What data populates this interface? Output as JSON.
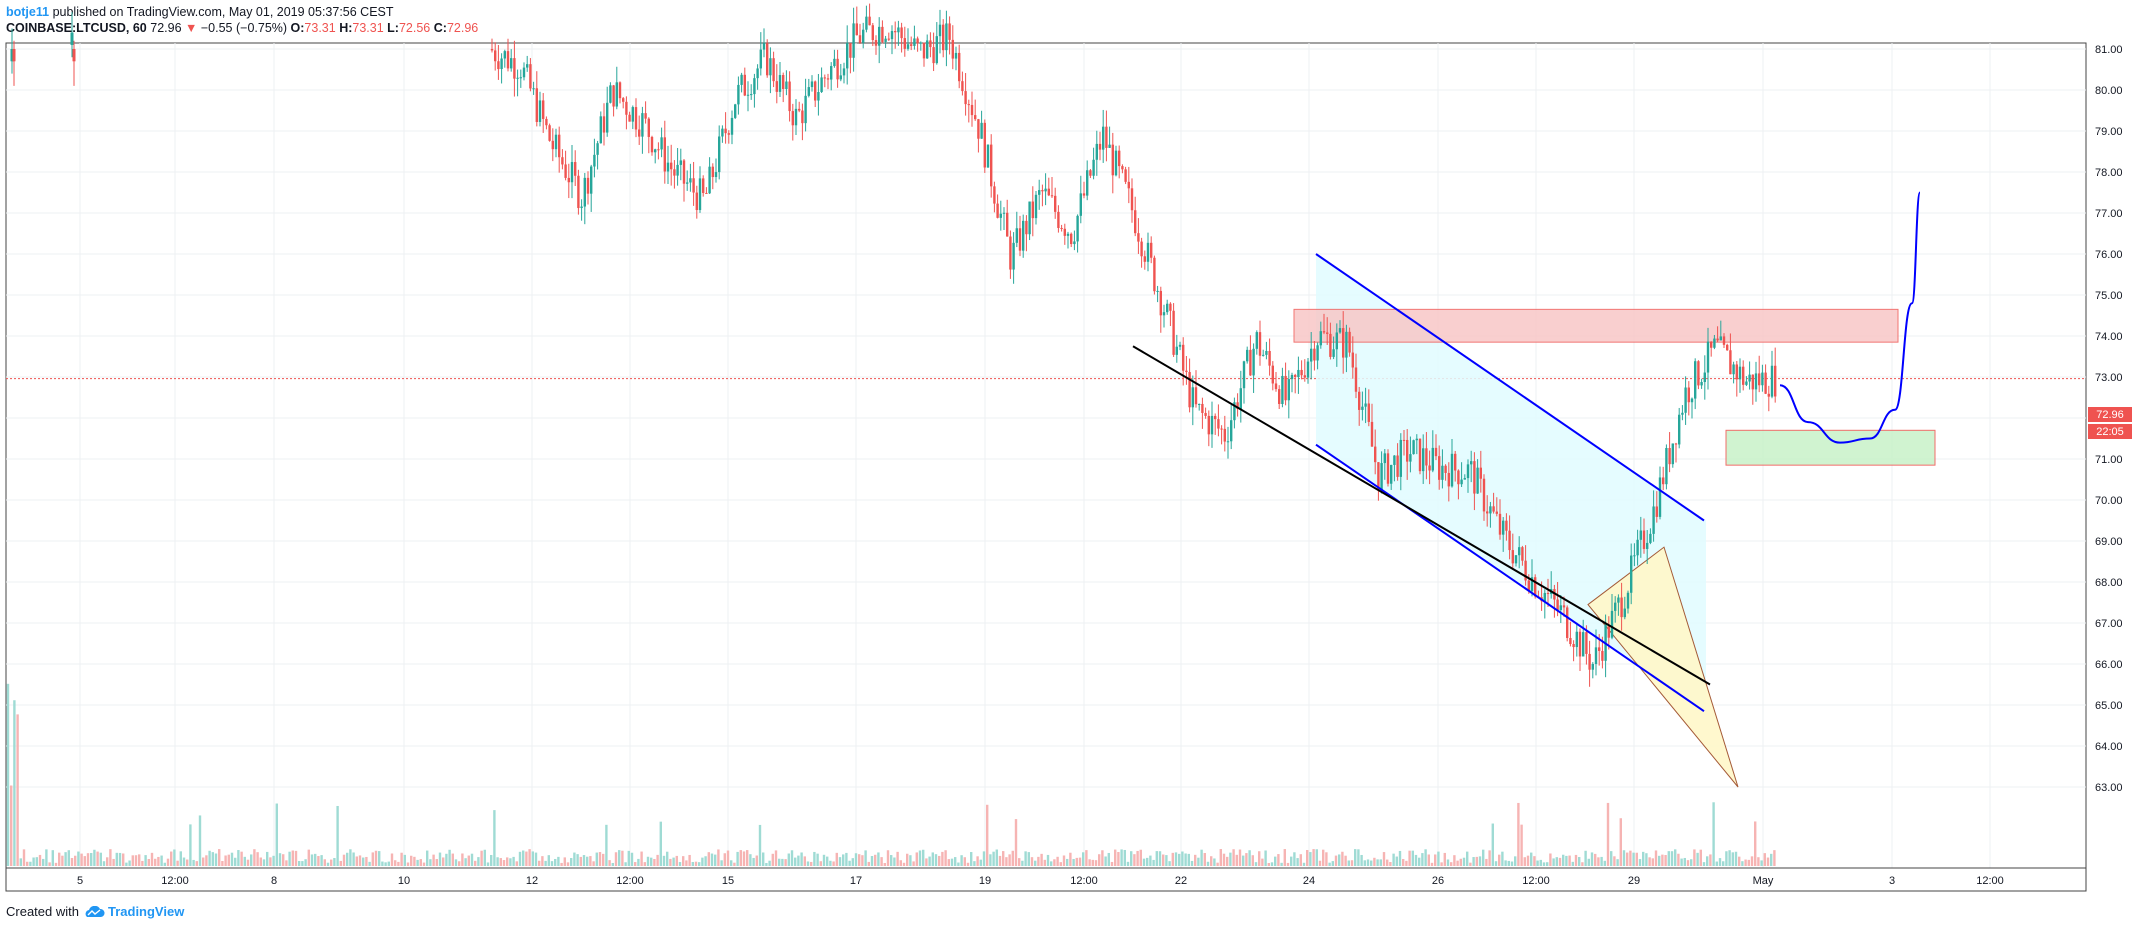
{
  "header": {
    "user": "botje11",
    "published_text": "published on TradingView.com, May 01, 2019 05:37:56 CEST",
    "symbol": "COINBASE:LTCUSD, 60",
    "last": "72.96",
    "arrow": "▼",
    "change": "−0.55 (−0.75%)",
    "o_label": "O:",
    "o_value": "73.31",
    "h_label": "H:",
    "h_value": "73.31",
    "l_label": "L:",
    "l_value": "72.56",
    "c_label": "C:",
    "c_value": "72.96"
  },
  "footer": {
    "created": "Created with",
    "brand": "TradingView"
  },
  "price_badge": "72.96",
  "countdown_badge": "22:05",
  "colors": {
    "up": "#26a69a",
    "down": "#ef5350",
    "channel": "#0000ff",
    "support": "#000000",
    "resistance_fill": "#f8c4c4",
    "demand_fill": "#c8f2c8",
    "wedge_fill": "#fff8cc",
    "channel_fill": "#e0fbff"
  },
  "chart_data": {
    "type": "candlestick",
    "symbol": "COINBASE:LTCUSD",
    "interval": "60",
    "y_ticks": [
      63.0,
      64.0,
      65.0,
      66.0,
      67.0,
      68.0,
      69.0,
      70.0,
      71.0,
      72.0,
      73.0,
      74.0,
      75.0,
      76.0,
      77.0,
      78.0,
      79.0,
      80.0,
      81.0
    ],
    "ylim": [
      62.0,
      82.0
    ],
    "x_ticks": [
      "5",
      "12:00",
      "8",
      "10",
      "12",
      "12:00",
      "15",
      "17",
      "19",
      "12:00",
      "22",
      "24",
      "26",
      "12:00",
      "29",
      "May",
      "3",
      "12:00"
    ],
    "last_price": 72.96,
    "series_path": [
      [
        0,
        81.0
      ],
      [
        1,
        80.6
      ],
      [
        2,
        78.7
      ],
      [
        3,
        77.4
      ],
      [
        4,
        80.0
      ],
      [
        5,
        79.2
      ],
      [
        6,
        78.0
      ],
      [
        7,
        77.3
      ],
      [
        8,
        79.8
      ],
      [
        9,
        80.8
      ],
      [
        10,
        79.3
      ],
      [
        11,
        80.4
      ],
      [
        12,
        81.3
      ],
      [
        13,
        81.6
      ],
      [
        14,
        80.9
      ],
      [
        15,
        81.3
      ],
      [
        16,
        79.0
      ],
      [
        17,
        75.9
      ],
      [
        18,
        77.5
      ],
      [
        19,
        76.5
      ],
      [
        20,
        78.9
      ],
      [
        21,
        77.0
      ],
      [
        22,
        74.7
      ],
      [
        23,
        72.2
      ],
      [
        24,
        71.6
      ],
      [
        25,
        73.9
      ],
      [
        26,
        72.4
      ],
      [
        27,
        74.0
      ],
      [
        28,
        73.8
      ],
      [
        29,
        70.6
      ],
      [
        30,
        71.2
      ],
      [
        31,
        70.8
      ],
      [
        32,
        70.7
      ],
      [
        33,
        69.2
      ],
      [
        34,
        68.1
      ],
      [
        35,
        67.2
      ],
      [
        36,
        66.0
      ],
      [
        37,
        67.7
      ],
      [
        38,
        69.8
      ],
      [
        39,
        72.6
      ],
      [
        40,
        73.7
      ],
      [
        41,
        72.9
      ],
      [
        42,
        72.96
      ]
    ]
  },
  "annotations": {
    "resistance_zone": [
      73.85,
      74.65
    ],
    "demand_zone": [
      70.85,
      71.7
    ],
    "channel_upper": [
      [
        0,
        76.0
      ],
      [
        1,
        69.5
      ]
    ],
    "channel_lower": [
      [
        0,
        71.35
      ],
      [
        1,
        64.85
      ]
    ],
    "support_line": [
      [
        0,
        73.75
      ],
      [
        1,
        65.5
      ]
    ],
    "projection": [
      72.8,
      71.9,
      71.4,
      71.5,
      72.2,
      74.8,
      77.5
    ]
  }
}
